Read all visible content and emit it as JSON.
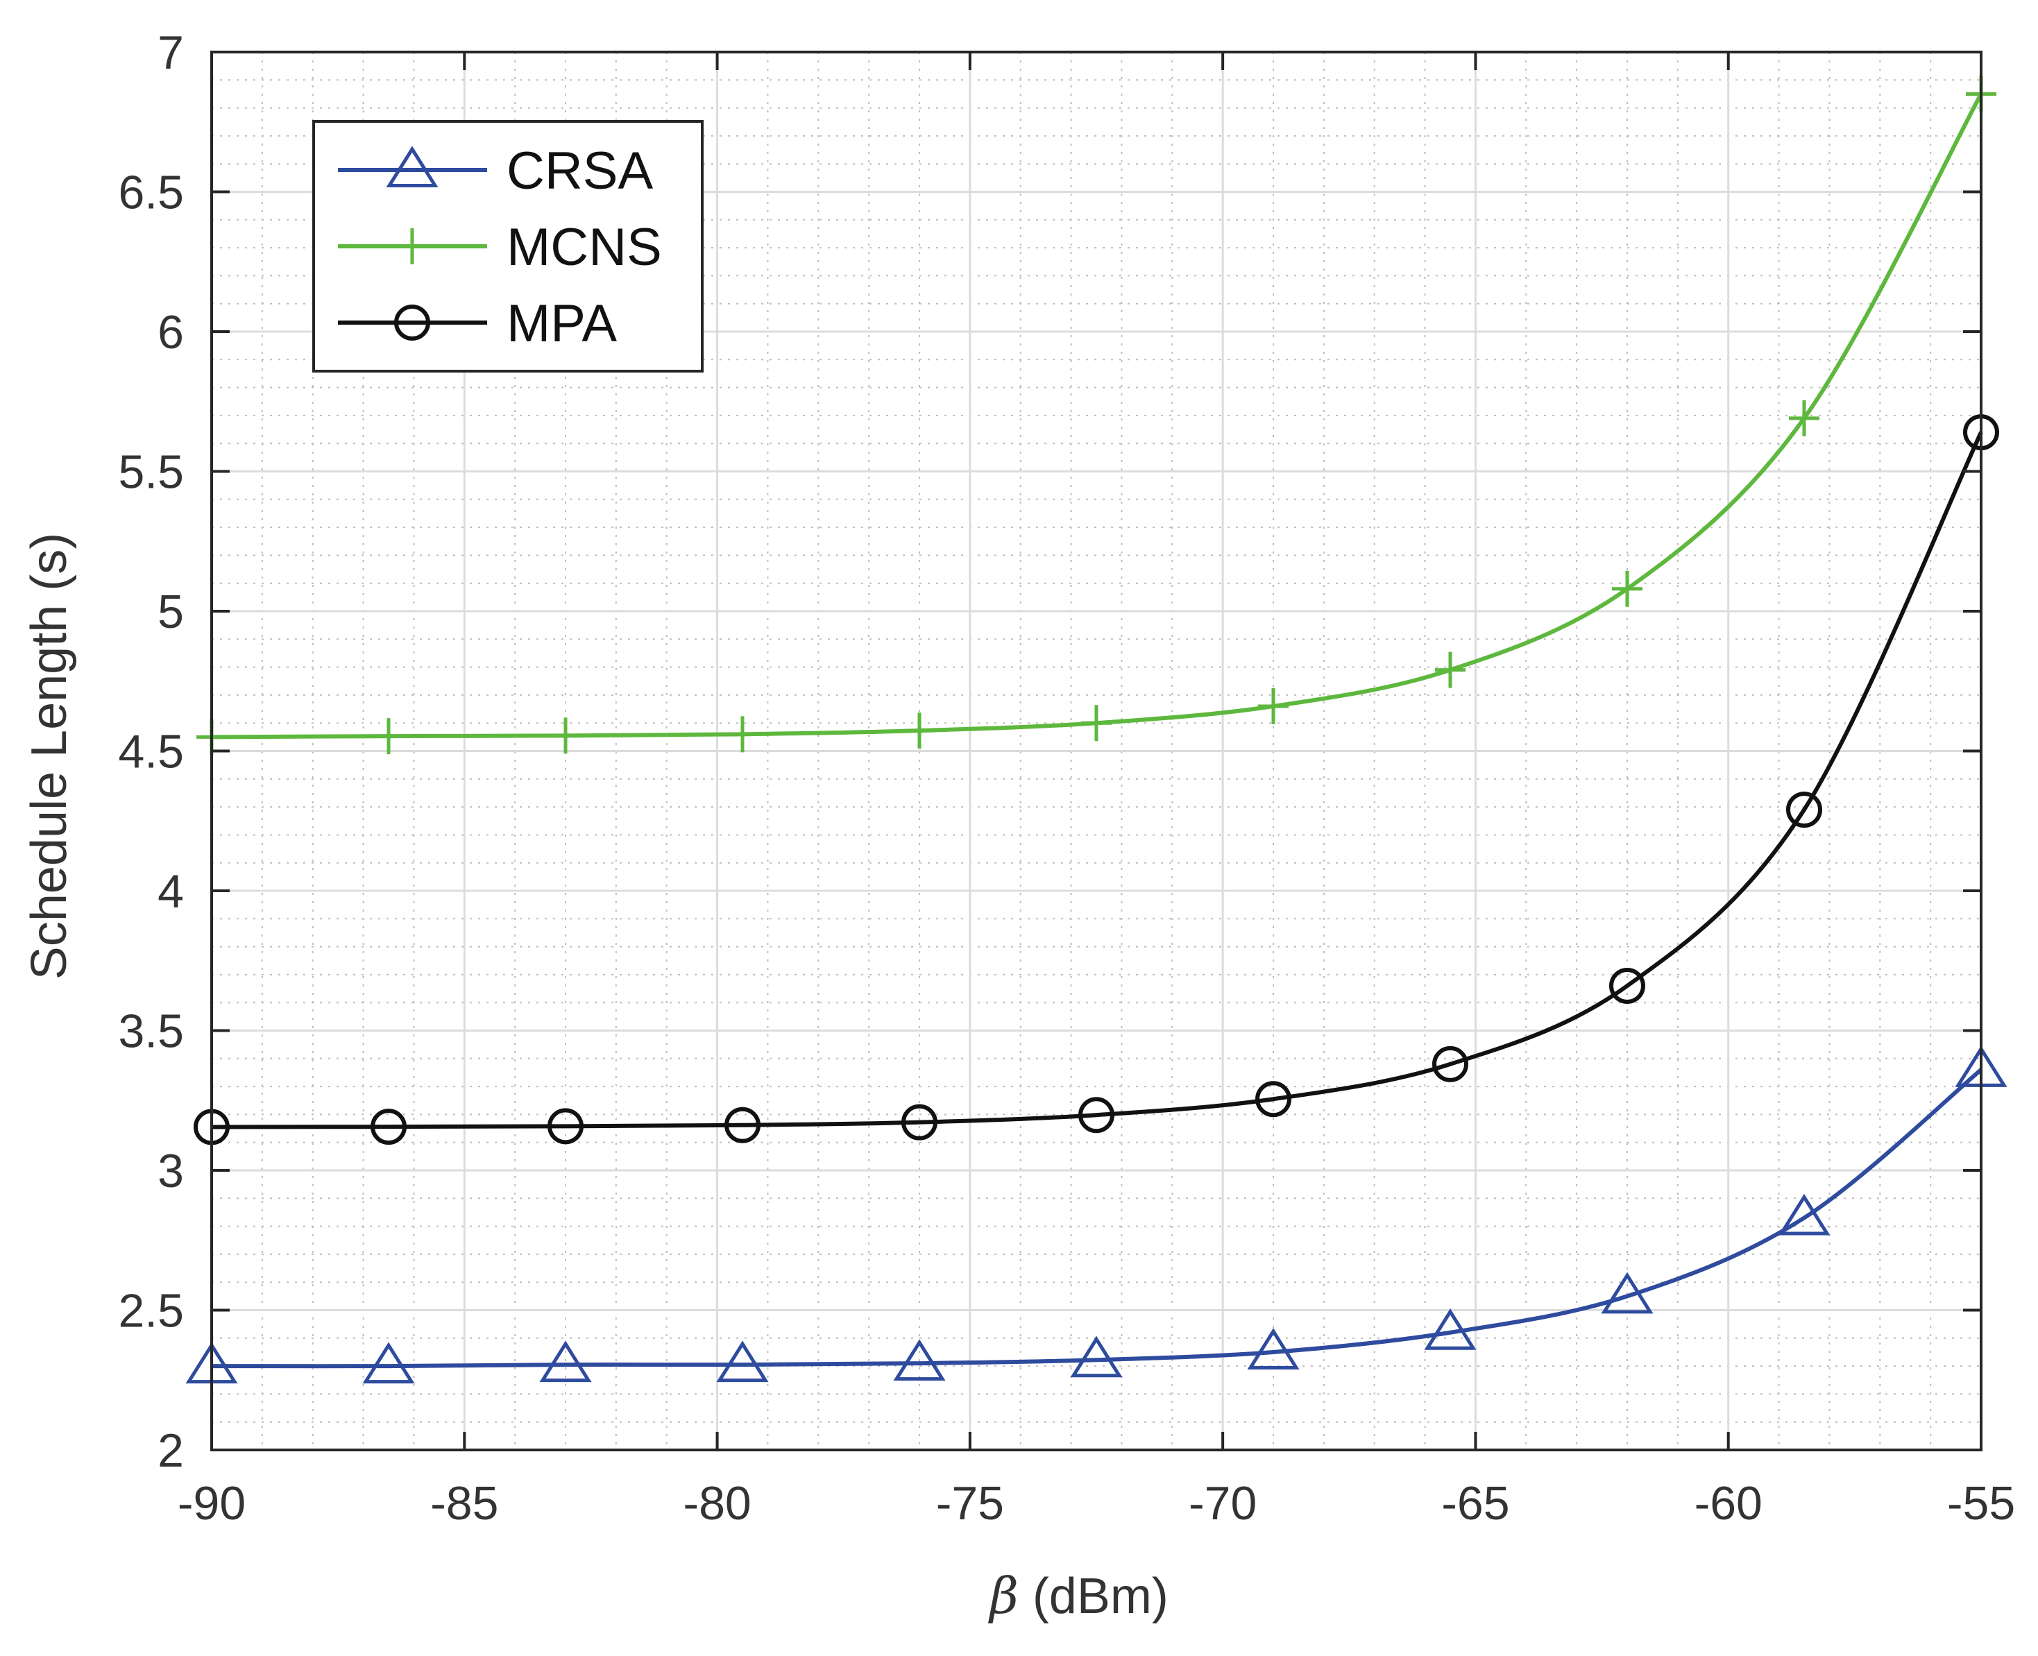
{
  "chart_data": {
    "type": "line",
    "title": "",
    "xlabel_symbol": "β",
    "xlabel_unit": " (dBm)",
    "ylabel": "Schedule Length (s)",
    "xlim": [
      -90,
      -55
    ],
    "ylim": [
      2,
      7
    ],
    "xticks": [
      -90,
      -85,
      -80,
      -75,
      -70,
      -65,
      -60,
      -55
    ],
    "yticks": [
      2,
      2.5,
      3,
      3.5,
      4,
      4.5,
      5,
      5.5,
      6,
      6.5,
      7
    ],
    "grid": true,
    "minor_grid": true,
    "legend_position": "top-left",
    "x": [
      -90,
      -86.5,
      -83,
      -79.5,
      -76,
      -72.5,
      -69,
      -65.5,
      -62,
      -58.5,
      -55
    ],
    "series": [
      {
        "name": "CRSA",
        "marker": "triangle",
        "color": "#2E4B9E",
        "values": [
          2.3,
          2.3,
          2.305,
          2.305,
          2.31,
          2.322,
          2.35,
          2.42,
          2.55,
          2.83,
          3.36
        ]
      },
      {
        "name": "MCNS",
        "marker": "plus",
        "color": "#5DB83D",
        "values": [
          4.55,
          4.553,
          4.555,
          4.56,
          4.573,
          4.6,
          4.66,
          4.79,
          5.08,
          5.69,
          6.85
        ]
      },
      {
        "name": "MPA",
        "marker": "circle",
        "color": "#111111",
        "values": [
          3.155,
          3.156,
          3.158,
          3.162,
          3.172,
          3.198,
          3.255,
          3.38,
          3.66,
          4.29,
          5.64
        ]
      }
    ]
  }
}
